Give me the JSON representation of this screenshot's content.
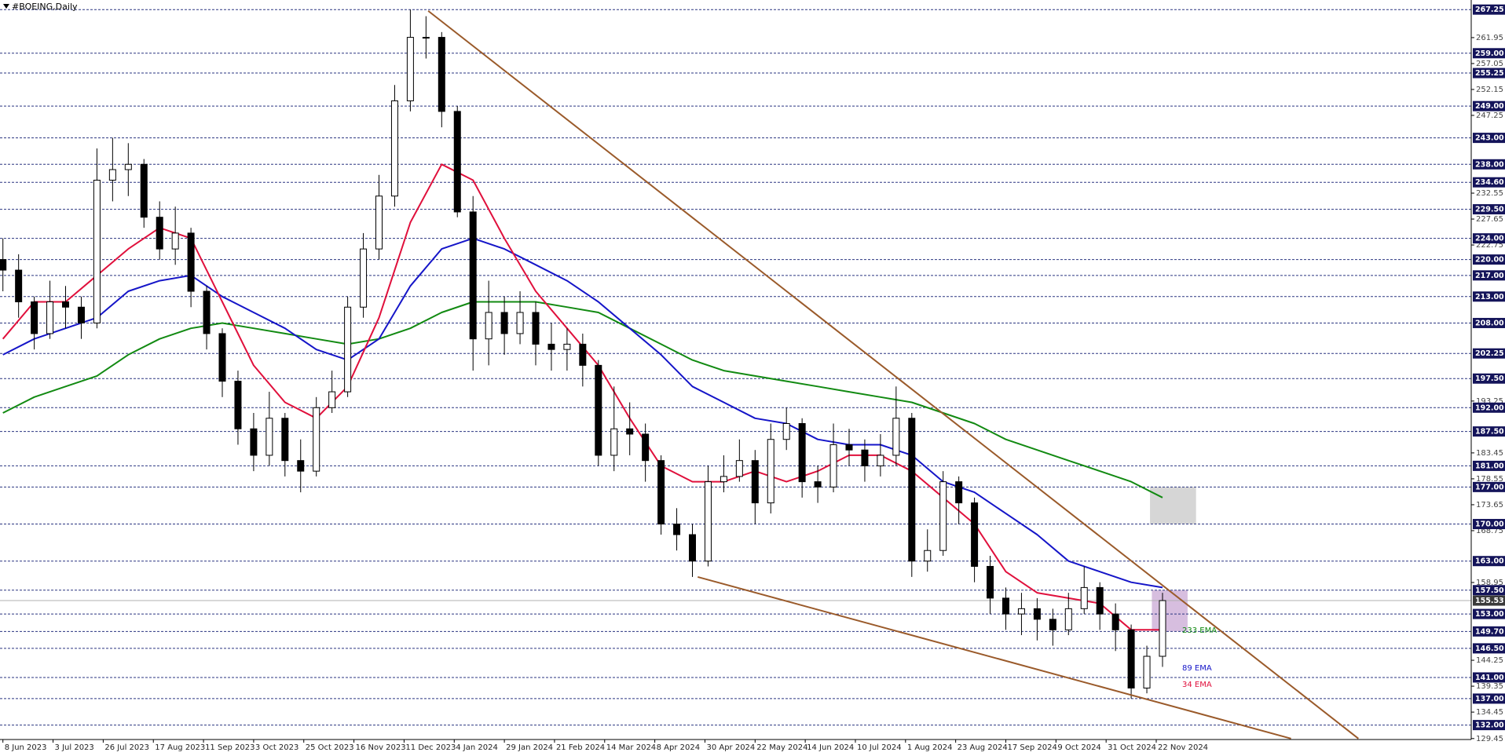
{
  "chart_data": {
    "type": "candlestick",
    "title": "#BOEING,Daily",
    "xlim": [
      -0.93,
      468.5
    ],
    "ylim": [
      129.27,
      269.06
    ],
    "xticks": [
      {
        "value": 0,
        "label": "8 Jun 2023"
      },
      {
        "value": 16,
        "label": "3 Jul 2023"
      },
      {
        "value": 32,
        "label": "26 Jul 2023"
      },
      {
        "value": 48,
        "label": "17 Aug 2023"
      },
      {
        "value": 64,
        "label": "11 Sep 2023"
      },
      {
        "value": 80,
        "label": "3 Oct 2023"
      },
      {
        "value": 96,
        "label": "25 Oct 2023"
      },
      {
        "value": 112,
        "label": "16 Nov 2023"
      },
      {
        "value": 128,
        "label": "11 Dec 2023"
      },
      {
        "value": 144,
        "label": "4 Jan 2024"
      },
      {
        "value": 160,
        "label": "29 Jan 2024"
      },
      {
        "value": 176,
        "label": "21 Feb 2024"
      },
      {
        "value": 192,
        "label": "14 Mar 2024"
      },
      {
        "value": 208,
        "label": "8 Apr 2024"
      },
      {
        "value": 224,
        "label": "30 Apr 2024"
      },
      {
        "value": 240,
        "label": "22 May 2024"
      },
      {
        "value": 256,
        "label": "14 Jun 2024"
      },
      {
        "value": 272,
        "label": "10 Jul 2024"
      },
      {
        "value": 288,
        "label": "1 Aug 2024"
      },
      {
        "value": 304,
        "label": "23 Aug 2024"
      },
      {
        "value": 320,
        "label": "17 Sep 2024"
      },
      {
        "value": 336,
        "label": "9 Oct 2024"
      },
      {
        "value": 352,
        "label": "31 Oct 2024"
      },
      {
        "value": 368,
        "label": "22 Nov 2024"
      }
    ],
    "yticks": [
      261.95,
      257.05,
      252.15,
      247.25,
      232.55,
      227.65,
      222.75,
      193.25,
      183.45,
      178.55,
      173.65,
      168.75,
      158.95,
      144.25,
      139.35,
      134.45,
      129.45
    ],
    "levels": [
      267.25,
      {
        "value": 259,
        "label": "259.00"
      },
      255.25,
      {
        "value": 249,
        "label": "249.00"
      },
      {
        "value": 243,
        "label": "243.00"
      },
      {
        "value": 238,
        "label": "238.00"
      },
      {
        "value": 234.6,
        "label": "234.60"
      },
      {
        "value": 229.5,
        "label": "229.50"
      },
      {
        "value": 224,
        "label": "224.00"
      },
      {
        "value": 220,
        "label": "220.00"
      },
      {
        "value": 217,
        "label": "217.00"
      },
      {
        "value": 213,
        "label": "213.00"
      },
      {
        "value": 208,
        "label": "208.00"
      },
      202.25,
      {
        "value": 197.5,
        "label": "197.50"
      },
      {
        "value": 192,
        "label": "192.00"
      },
      {
        "value": 187.5,
        "label": "187.50"
      },
      {
        "value": 181,
        "label": "181.00"
      },
      {
        "value": 177,
        "label": "177.00"
      },
      {
        "value": 170,
        "label": "170.00"
      },
      {
        "value": 163,
        "label": "163.00"
      },
      {
        "value": 157.5,
        "label": "157.50"
      },
      {
        "value": 153,
        "label": "153.00"
      },
      {
        "value": 149.7,
        "label": "149.70"
      },
      {
        "value": 146.5,
        "label": "146.50"
      },
      {
        "value": 141,
        "label": "141.00"
      },
      {
        "value": 137,
        "label": "137.00"
      },
      {
        "value": 132,
        "label": "132.00"
      }
    ],
    "current_price": 155.53,
    "candle_up_color": "#ffffff",
    "candle_down_color": "#000000",
    "x": [
      0,
      5,
      10,
      15,
      20,
      25,
      30,
      35,
      40,
      45,
      50,
      55,
      60,
      65,
      70,
      75,
      80,
      85,
      90,
      95,
      100,
      105,
      110,
      115,
      120,
      125,
      130,
      135,
      140,
      145,
      150,
      155,
      160,
      165,
      170,
      175,
      180,
      185,
      190,
      195,
      200,
      205,
      210,
      215,
      220,
      225,
      230,
      235,
      240,
      245,
      250,
      255,
      260,
      265,
      270,
      275,
      280,
      285,
      290,
      295,
      300,
      305,
      310,
      315,
      320,
      325,
      330,
      335,
      340,
      345,
      350,
      355,
      360,
      365,
      370
    ],
    "open": [
      220,
      218,
      212,
      206,
      212,
      211,
      208,
      235,
      237,
      238,
      228,
      222,
      225,
      214,
      206,
      197,
      188,
      183,
      190,
      182,
      180,
      192,
      195,
      211,
      222,
      232,
      250,
      262,
      262,
      248,
      229,
      205,
      210,
      206,
      210,
      204,
      203,
      204,
      200,
      183,
      188,
      187,
      182,
      170,
      168,
      163,
      178,
      179,
      182,
      174,
      186,
      189,
      178,
      177,
      185,
      184,
      181,
      183,
      190,
      163,
      165,
      178,
      174,
      162,
      156,
      153,
      154,
      152,
      150,
      154,
      158,
      153,
      150,
      139,
      145
    ],
    "high": [
      224,
      221,
      213,
      216,
      215,
      213,
      241,
      243,
      242,
      239,
      231,
      230,
      226,
      215,
      207,
      199,
      191,
      195,
      191,
      186,
      194,
      199,
      213,
      225,
      236,
      253,
      267.25,
      266,
      263,
      249,
      232,
      216,
      213,
      214,
      212,
      208,
      207,
      206,
      201,
      196,
      193,
      189,
      183,
      173,
      170,
      181,
      183,
      186,
      184,
      189,
      192,
      190,
      181,
      189,
      188,
      186,
      187,
      196,
      191,
      169,
      180,
      179,
      175,
      164,
      158,
      157,
      156,
      154,
      157,
      162,
      159,
      155,
      151,
      147,
      157
    ],
    "low": [
      214,
      209,
      203,
      205,
      207,
      205,
      207,
      231,
      232,
      226,
      220,
      219,
      211,
      203,
      194,
      185,
      180,
      181,
      179,
      176,
      179,
      191,
      194,
      209,
      220,
      230,
      248,
      258,
      245,
      228,
      199,
      200,
      202,
      204,
      200,
      199,
      199,
      196,
      181,
      180,
      183,
      178,
      168,
      165,
      160,
      162,
      176,
      178,
      170,
      172,
      184,
      175,
      174,
      176,
      181,
      178,
      179,
      181,
      160,
      161,
      164,
      170,
      159,
      153,
      150,
      149,
      148,
      147,
      149,
      153,
      150,
      146,
      137,
      138,
      143
    ],
    "close": [
      218,
      212,
      206,
      212,
      211,
      208,
      235,
      237,
      238,
      228,
      222,
      225,
      214,
      206,
      197,
      188,
      183,
      190,
      182,
      180,
      192,
      195,
      211,
      222,
      232,
      250,
      262,
      262,
      248,
      229,
      205,
      210,
      206,
      210,
      204,
      203,
      204,
      200,
      183,
      188,
      187,
      182,
      170,
      168,
      163,
      178,
      179,
      182,
      174,
      186,
      189,
      178,
      177,
      185,
      184,
      181,
      183,
      190,
      163,
      165,
      178,
      174,
      162,
      156,
      153,
      154,
      152,
      150,
      154,
      158,
      153,
      150,
      139,
      145,
      155.53
    ],
    "series": [
      {
        "name": "233 EMA",
        "color": "#128a12",
        "x": [
          0,
          10,
          20,
          30,
          40,
          50,
          60,
          70,
          80,
          90,
          100,
          110,
          120,
          130,
          140,
          150,
          160,
          170,
          180,
          190,
          200,
          210,
          220,
          230,
          240,
          250,
          260,
          270,
          280,
          290,
          300,
          310,
          320,
          330,
          340,
          350,
          360,
          370
        ],
        "values": [
          191,
          194,
          196,
          198,
          202,
          205,
          207,
          208,
          207,
          206,
          205,
          204,
          205,
          207,
          210,
          212,
          212,
          212,
          211,
          210,
          207,
          204,
          201,
          199,
          198,
          197,
          196,
          195,
          194,
          193,
          191,
          189,
          186,
          184,
          182,
          180,
          178,
          175
        ]
      },
      {
        "name": "89 EMA",
        "color": "#1515c8",
        "x": [
          0,
          10,
          20,
          30,
          40,
          50,
          60,
          70,
          80,
          90,
          100,
          110,
          120,
          130,
          140,
          150,
          160,
          170,
          180,
          190,
          200,
          210,
          220,
          230,
          240,
          250,
          260,
          270,
          280,
          290,
          300,
          310,
          320,
          330,
          340,
          350,
          360,
          370
        ],
        "values": [
          202,
          205,
          207,
          209,
          214,
          216,
          217,
          213,
          210,
          207,
          203,
          201,
          205,
          215,
          222,
          224,
          222,
          219,
          216,
          212,
          207,
          202,
          196,
          193,
          190,
          189,
          186,
          185,
          185,
          183,
          178,
          176,
          172,
          168,
          163,
          161,
          159,
          158
        ]
      },
      {
        "name": "34 EMA",
        "color": "#e0103c",
        "x": [
          0,
          10,
          20,
          30,
          40,
          50,
          60,
          70,
          80,
          90,
          100,
          110,
          120,
          130,
          140,
          150,
          160,
          170,
          180,
          190,
          200,
          210,
          220,
          230,
          240,
          250,
          260,
          270,
          280,
          290,
          300,
          310,
          320,
          330,
          340,
          350,
          360,
          370
        ],
        "values": [
          205,
          212,
          212,
          217,
          222,
          226,
          224,
          212,
          200,
          193,
          190,
          196,
          209,
          227,
          238,
          235,
          224,
          214,
          207,
          200,
          190,
          181,
          178,
          178,
          180,
          178,
          180,
          183,
          183,
          180,
          175,
          170,
          161,
          157,
          156,
          155,
          150,
          150
        ]
      }
    ],
    "trendlines": [
      {
        "color": "#9a5a2a",
        "x": [
          135.7,
          432.5
        ],
        "values": [
          267.0,
          129.45
        ]
      },
      {
        "color": "#9a5a2a",
        "x": [
          221.7,
          411
        ],
        "values": [
          160,
          129.45
        ]
      }
    ],
    "zones": [
      {
        "color": "#c8c8c8",
        "x": [
          366,
          380.7
        ],
        "values": [
          177,
          170
        ]
      },
      {
        "color": "#c9a8d4",
        "x": [
          366.6,
          378
        ],
        "values": [
          157.5,
          149.7
        ]
      }
    ]
  }
}
